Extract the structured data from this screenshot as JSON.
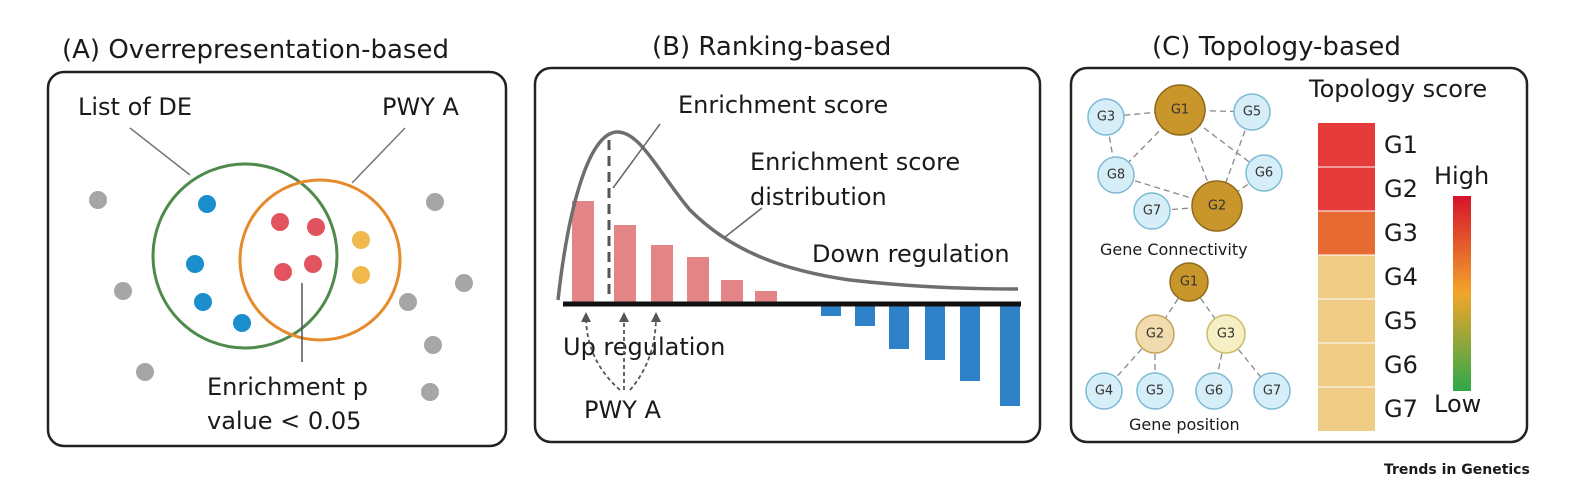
{
  "brand": "Trends in Genetics",
  "colors": {
    "gray_dot": "#a6a6a6",
    "blue_dot": "#1b8fce",
    "red_dot": "#e2545d",
    "yellow_dot": "#f0b84d",
    "green_circle": "#4f8a4a",
    "orange_circle": "#e8892c",
    "pink_bar": "#e38486",
    "blue_bar": "#2f82c8",
    "node_light": "#d6eef7",
    "node_gold": "#c9962b",
    "node_tan": "#f0dcae",
    "node_cream": "#f5efc3",
    "score_high": "#e53b3b",
    "score_mid": "#e86a33",
    "score_low": "#f0cd85"
  },
  "panel_a": {
    "title": "(A) Overrepresentation-based",
    "list_label": "List of DE",
    "pwy_label": "PWY A",
    "enrichment_line1": "Enrichment p",
    "enrichment_line2": "value < 0.05"
  },
  "panel_b": {
    "title": "(B) Ranking-based",
    "enrichment_score": "Enrichment score",
    "dist_line1": "Enrichment score",
    "dist_line2": "distribution",
    "down_regulation": "Down regulation",
    "up_regulation": "Up regulation",
    "pwy_label": "PWY A"
  },
  "panel_c": {
    "title": "(C) Topology-based",
    "score_title": "Topology score",
    "connectivity_label": "Gene Connectivity",
    "position_label": "Gene position",
    "high": "High",
    "low": "Low",
    "connectivity_nodes": [
      "G1",
      "G2",
      "G3",
      "G5",
      "G6",
      "G7",
      "G8"
    ],
    "position_nodes": [
      "G1",
      "G2",
      "G3",
      "G4",
      "G5",
      "G6",
      "G7"
    ],
    "score_rows": [
      {
        "gene": "G1",
        "level": "high"
      },
      {
        "gene": "G2",
        "level": "high"
      },
      {
        "gene": "G3",
        "level": "mid"
      },
      {
        "gene": "G4",
        "level": "low"
      },
      {
        "gene": "G5",
        "level": "low"
      },
      {
        "gene": "G6",
        "level": "low"
      },
      {
        "gene": "G7",
        "level": "low"
      }
    ]
  }
}
